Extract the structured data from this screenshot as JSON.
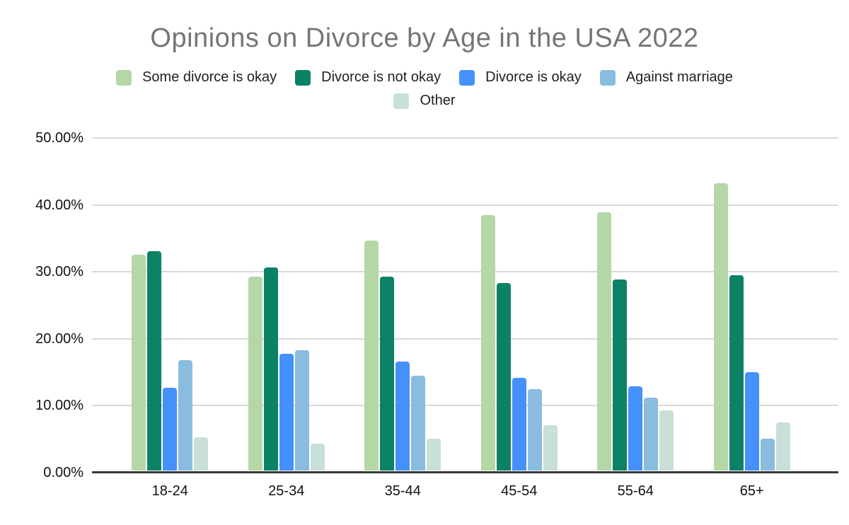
{
  "title": "Opinions on Divorce by Age in the USA 2022",
  "chart_data": {
    "type": "bar",
    "title": "Opinions on Divorce by Age in the USA 2022",
    "categories": [
      "18-24",
      "25-34",
      "35-44",
      "45-54",
      "55-64",
      "65+"
    ],
    "series": [
      {
        "name": "Some divorce is okay",
        "color": "#b5d7a6",
        "values": [
          32.5,
          29.2,
          34.6,
          38.4,
          38.8,
          43.2
        ]
      },
      {
        "name": "Divorce is not okay",
        "color": "#0b8266",
        "values": [
          33.0,
          30.5,
          29.2,
          28.2,
          28.7,
          29.4
        ]
      },
      {
        "name": "Divorce is okay",
        "color": "#4590fa",
        "values": [
          12.5,
          17.6,
          16.4,
          13.9,
          12.7,
          14.8
        ]
      },
      {
        "name": "Against marriage",
        "color": "#89bcde",
        "values": [
          16.6,
          18.1,
          14.3,
          12.2,
          11.0,
          4.8
        ]
      },
      {
        "name": "Other",
        "color": "#c8e0d7",
        "values": [
          5.0,
          4.0,
          4.8,
          6.8,
          9.0,
          7.2
        ]
      }
    ],
    "xlabel": "",
    "ylabel": "",
    "ylim": [
      0,
      50
    ],
    "grid": true,
    "legend_position": "top",
    "y_ticks": [
      {
        "value": 0,
        "label": "0.00%"
      },
      {
        "value": 10,
        "label": "10.00%"
      },
      {
        "value": 20,
        "label": "20.00%"
      },
      {
        "value": 30,
        "label": "30.00%"
      },
      {
        "value": 40,
        "label": "40.00%"
      },
      {
        "value": 50,
        "label": "50.00%"
      }
    ]
  },
  "colors": {
    "background": "#ffffff",
    "title_text": "#757575",
    "tick_text": "#111111",
    "legend_text": "#1f1f1f",
    "gridline": "#d9d9d9",
    "axis_line": "#383838"
  }
}
